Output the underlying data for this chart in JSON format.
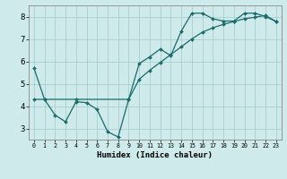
{
  "title": "",
  "xlabel": "Humidex (Indice chaleur)",
  "ylabel": "",
  "background_color": "#ceeaea",
  "grid_color": "#aacece",
  "line_color": "#1a6b6b",
  "xlim": [
    -0.5,
    23.5
  ],
  "ylim": [
    2.5,
    8.5
  ],
  "xticks": [
    0,
    1,
    2,
    3,
    4,
    5,
    6,
    7,
    8,
    9,
    10,
    11,
    12,
    13,
    14,
    15,
    16,
    17,
    18,
    19,
    20,
    21,
    22,
    23
  ],
  "yticks": [
    3,
    4,
    5,
    6,
    7,
    8
  ],
  "series1_x": [
    0,
    1,
    2,
    3,
    4,
    5,
    6,
    7,
    8,
    9,
    10,
    11,
    12,
    13,
    14,
    15,
    16,
    17,
    18,
    19,
    20,
    21,
    22,
    23
  ],
  "series1_y": [
    5.7,
    4.3,
    3.6,
    3.3,
    4.2,
    4.15,
    3.85,
    2.85,
    2.62,
    4.3,
    5.9,
    6.2,
    6.55,
    6.25,
    7.35,
    8.15,
    8.15,
    7.9,
    7.8,
    7.8,
    8.15,
    8.15,
    8.0,
    7.78
  ],
  "series2_x": [
    0,
    1,
    4,
    9,
    10,
    11,
    12,
    13,
    14,
    15,
    16,
    17,
    18,
    19,
    20,
    21,
    22,
    23
  ],
  "series2_y": [
    4.3,
    4.3,
    4.3,
    4.3,
    5.2,
    5.6,
    5.95,
    6.3,
    6.65,
    7.0,
    7.3,
    7.5,
    7.65,
    7.78,
    7.9,
    7.97,
    8.05,
    7.78
  ]
}
